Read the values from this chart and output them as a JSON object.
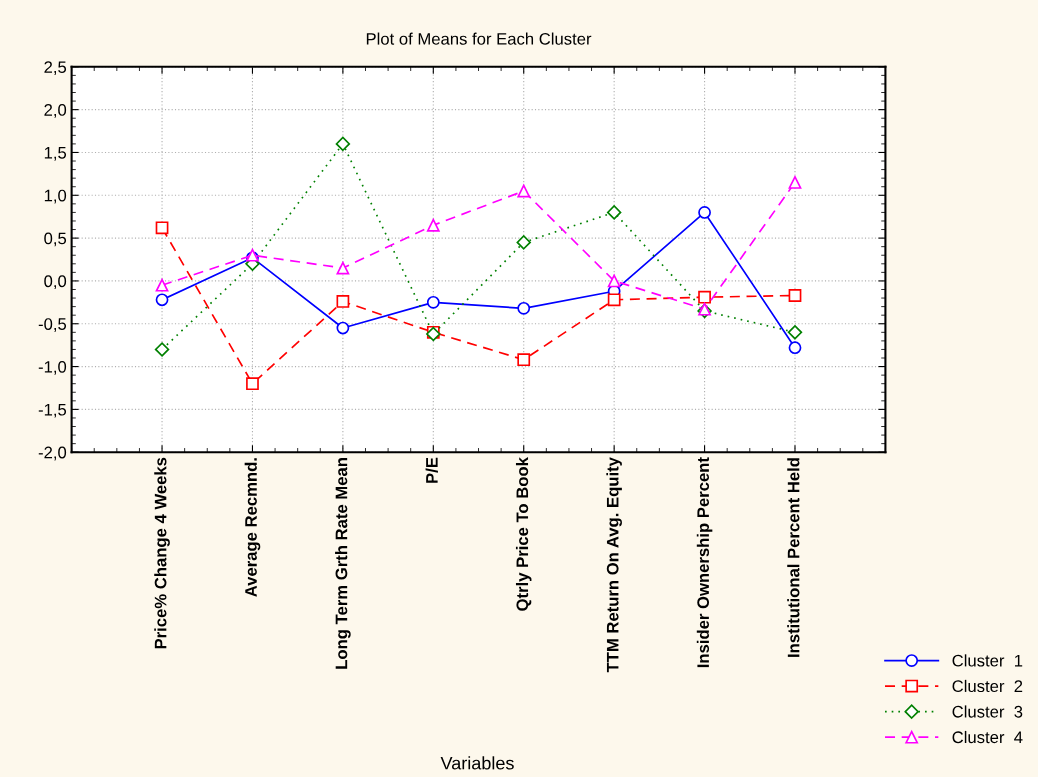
{
  "chart_data": {
    "type": "line",
    "title": "Plot of Means for Each Cluster",
    "xlabel": "Variables",
    "categories": [
      "Price% Change 4 Weeks",
      "Average Recmnd.",
      "Long Term Grth Rate Mean",
      "P/E",
      "Qtrly Price To Book",
      "TTM Return On Avg. Equity",
      "Insider Ownership Percent",
      "Institutional Percent Held"
    ],
    "series": [
      {
        "name": "Cluster  1",
        "color": "#0000ff",
        "marker": "circle",
        "line_style": "solid",
        "values": [
          -0.22,
          0.27,
          -0.55,
          -0.25,
          -0.32,
          -0.12,
          0.8,
          -0.78
        ]
      },
      {
        "name": "Cluster  2",
        "color": "#ff0000",
        "marker": "square",
        "line_style": "dashed",
        "values": [
          0.62,
          -1.2,
          -0.24,
          -0.6,
          -0.92,
          -0.22,
          -0.19,
          -0.17
        ]
      },
      {
        "name": "Cluster  3",
        "color": "#008000",
        "marker": "diamond",
        "line_style": "dotted",
        "values": [
          -0.8,
          0.2,
          1.6,
          -0.62,
          0.45,
          0.8,
          -0.35,
          -0.6
        ]
      },
      {
        "name": "Cluster  4",
        "color": "#ff00ff",
        "marker": "triangle",
        "line_style": "dashed",
        "values": [
          -0.05,
          0.3,
          0.15,
          0.65,
          1.05,
          0.0,
          -0.33,
          1.15
        ]
      }
    ],
    "ylim": [
      -2.0,
      2.5
    ],
    "yticks": [
      {
        "value": -2.0,
        "label": "-2,0"
      },
      {
        "value": -1.5,
        "label": "-1,5"
      },
      {
        "value": -1.0,
        "label": "-1,0"
      },
      {
        "value": -0.5,
        "label": "-0,5"
      },
      {
        "value": 0.0,
        "label": "0,0"
      },
      {
        "value": 0.5,
        "label": "0,5"
      },
      {
        "value": 1.0,
        "label": "1,0"
      },
      {
        "value": 1.5,
        "label": "1,5"
      },
      {
        "value": 2.0,
        "label": "2,0"
      },
      {
        "value": 2.5,
        "label": "2,5"
      }
    ],
    "grid": true,
    "legend": "bottom right"
  }
}
